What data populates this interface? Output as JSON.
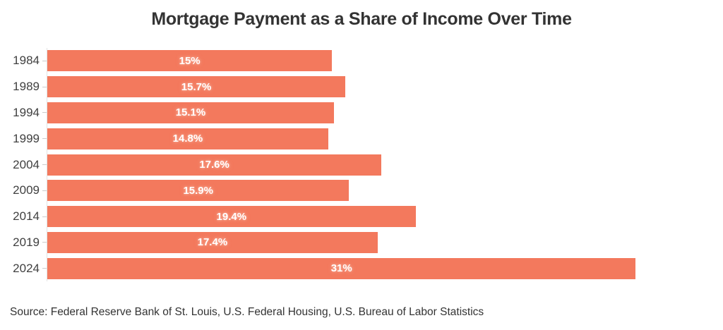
{
  "page": {
    "title": "Mortgage Payment as a Share of Income Over Time",
    "source": "Source: Federal Reserve Bank of St. Louis, U.S. Federal Housing, U.S. Bureau of Labor Statistics"
  },
  "colors": {
    "bar": "#f3795d",
    "title_text": "#333333",
    "year_label_text": "#404040",
    "value_label_text": "#ffffff",
    "value_label_glow": "#fab39e",
    "axis_line": "#e3e3e3",
    "tick": "#cccccc",
    "background": "#ffffff"
  },
  "chart_data": {
    "type": "bar",
    "orientation": "horizontal",
    "title": "Mortgage Payment as a Share of Income Over Time",
    "categories": [
      "1984",
      "1989",
      "1994",
      "1999",
      "2004",
      "2009",
      "2014",
      "2019",
      "2024"
    ],
    "values": [
      15,
      15.7,
      15.1,
      14.8,
      17.6,
      15.9,
      19.4,
      17.4,
      31
    ],
    "value_labels": [
      "15%",
      "15.7%",
      "15.1%",
      "14.8%",
      "17.6%",
      "15.9%",
      "19.4%",
      "17.4%",
      "31%"
    ],
    "xlabel": "",
    "ylabel": "",
    "xlim": [
      0,
      35
    ],
    "grid": false,
    "legend": false,
    "value_label_position": "center-inside"
  }
}
